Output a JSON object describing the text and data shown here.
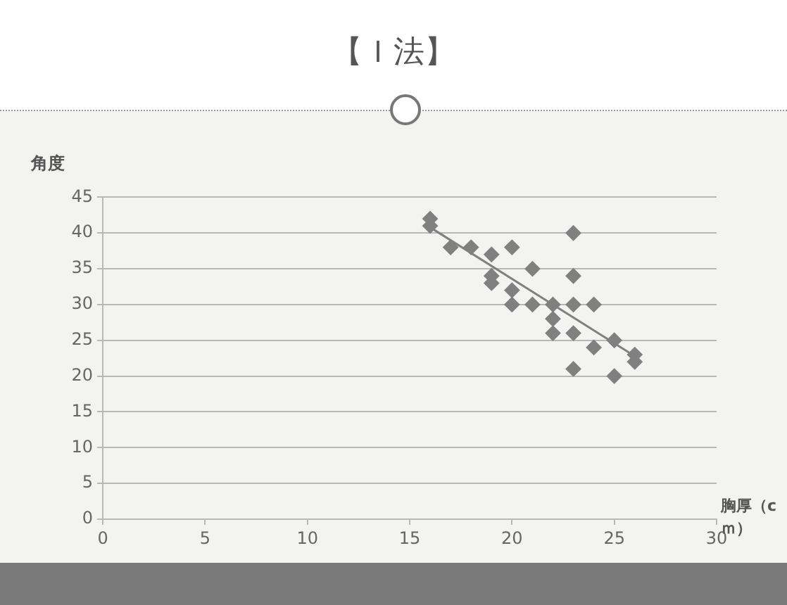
{
  "chart_data": {
    "type": "scatter",
    "title": "【Ｉ法】",
    "xlabel": "胸厚（cｍ）",
    "ylabel": "角度",
    "x": [
      16,
      16,
      17,
      18,
      19,
      20,
      23,
      21,
      23,
      19,
      19,
      20,
      20,
      21,
      22,
      23,
      24,
      22,
      22,
      23,
      24,
      25,
      26,
      26,
      23,
      25
    ],
    "series": [
      {
        "color": "#808080",
        "marker": "diamond",
        "values": [
          42,
          41,
          38,
          38,
          37,
          38,
          40,
          35,
          34,
          34,
          33,
          32,
          30,
          30,
          30,
          30,
          30,
          28,
          26,
          26,
          24,
          25,
          23,
          22,
          21,
          20
        ]
      },
      {
        "type": "line",
        "color": "#808080",
        "marker": "none",
        "x": [
          16,
          26
        ],
        "values": [
          40.8,
          22.8
        ]
      }
    ],
    "xlim": [
      0,
      30
    ],
    "xticks": [
      0,
      5,
      10,
      15,
      20,
      25,
      30
    ],
    "ylim": [
      0,
      45
    ],
    "yticks": [
      0,
      5,
      10,
      15,
      20,
      25,
      30,
      35,
      40,
      45
    ],
    "grid": "y",
    "legend": false
  }
}
